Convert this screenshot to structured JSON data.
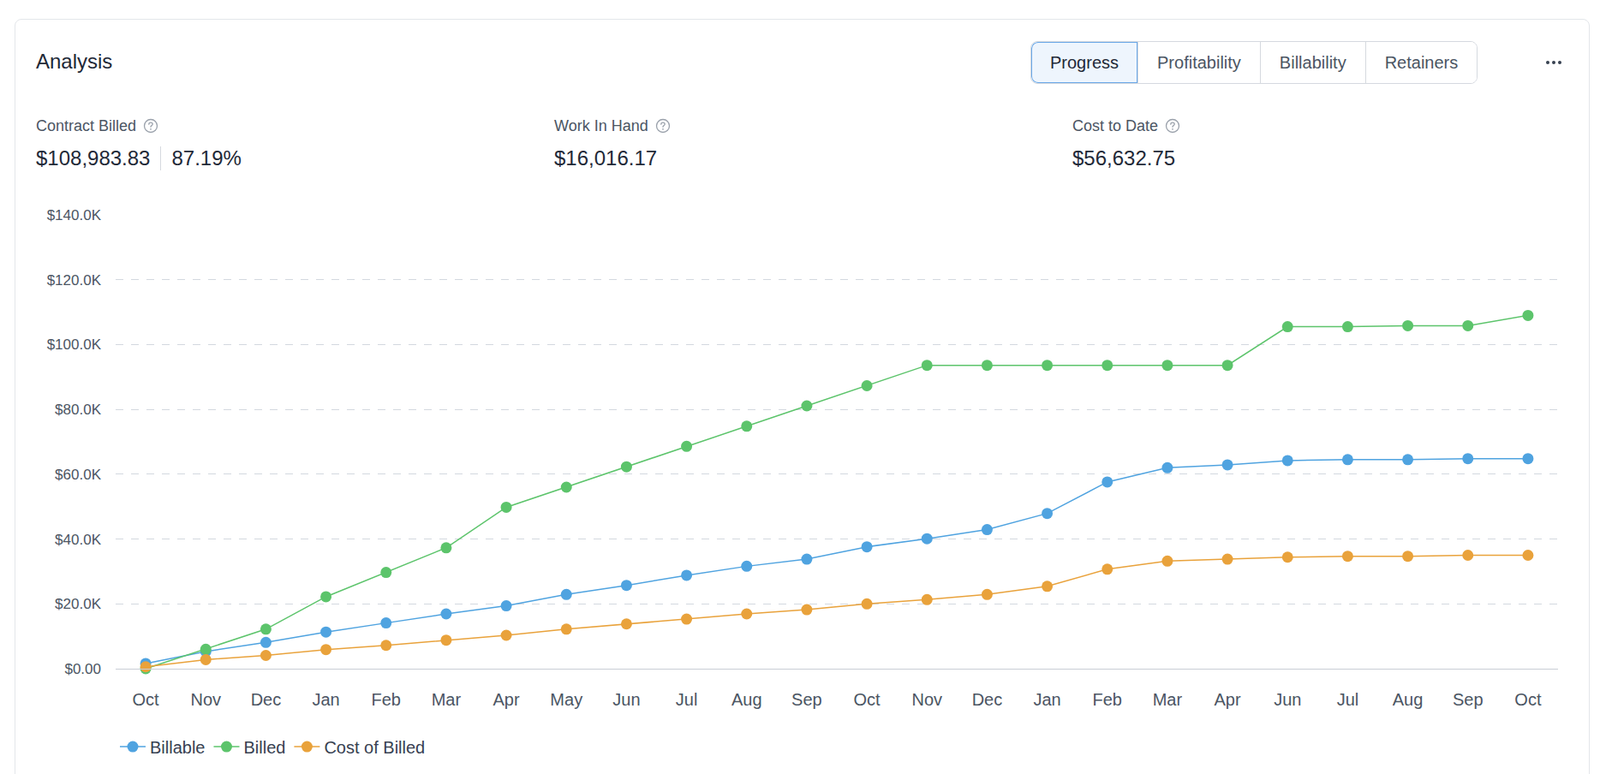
{
  "header": {
    "title": "Analysis",
    "tabs": [
      "Progress",
      "Profitability",
      "Billability",
      "Retainers"
    ],
    "active_tab": "Progress"
  },
  "metrics": [
    {
      "label": "Contract Billed",
      "value": "$108,983.83",
      "extra": "87.19%"
    },
    {
      "label": "Work In Hand",
      "value": "$16,016.17"
    },
    {
      "label": "Cost to Date",
      "value": "$56,632.75"
    }
  ],
  "chart_data": {
    "type": "line",
    "categories": [
      "Oct",
      "Nov",
      "Dec",
      "Jan",
      "Feb",
      "Mar",
      "Apr",
      "May",
      "Jun",
      "Jul",
      "Aug",
      "Sep",
      "Oct",
      "Nov",
      "Dec",
      "Jan",
      "Feb",
      "Mar",
      "Apr",
      "Jun",
      "Jul",
      "Aug",
      "Sep",
      "Oct"
    ],
    "series": [
      {
        "name": "Billable",
        "color": "#4fa3e0",
        "marker": "circle",
        "values": [
          1600,
          5300,
          8100,
          11300,
          14100,
          16900,
          19400,
          22900,
          25700,
          28800,
          31600,
          33800,
          37600,
          40100,
          42900,
          47900,
          57600,
          62000,
          62900,
          64200,
          64500,
          64500,
          64800,
          64800
        ]
      },
      {
        "name": "Billed",
        "color": "#5cc46b",
        "marker": "circle",
        "values": [
          0,
          6000,
          12200,
          22200,
          29700,
          37300,
          49800,
          56000,
          62300,
          68600,
          74800,
          81100,
          87300,
          93600,
          93600,
          93600,
          93600,
          93600,
          93600,
          105500,
          105500,
          105800,
          105800,
          108983.83
        ]
      },
      {
        "name": "Cost of Billed",
        "color": "#e9a23b",
        "marker": "circle",
        "values": [
          600,
          2800,
          4100,
          5900,
          7200,
          8800,
          10300,
          12200,
          13800,
          15300,
          16900,
          18200,
          20000,
          21300,
          22900,
          25400,
          30700,
          33200,
          33800,
          34400,
          34700,
          34700,
          35000,
          35000
        ]
      }
    ],
    "ylim": [
      0,
      140000
    ],
    "yticks": [
      {
        "value": 0,
        "label": "$0.00"
      },
      {
        "value": 20000,
        "label": "$20.0K"
      },
      {
        "value": 40000,
        "label": "$40.0K"
      },
      {
        "value": 60000,
        "label": "$60.0K"
      },
      {
        "value": 80000,
        "label": "$80.0K"
      },
      {
        "value": 100000,
        "label": "$100.0K"
      },
      {
        "value": 120000,
        "label": "$120.0K"
      },
      {
        "value": 140000,
        "label": "$140.0K"
      }
    ],
    "grid": true,
    "legend": "bottom left"
  }
}
